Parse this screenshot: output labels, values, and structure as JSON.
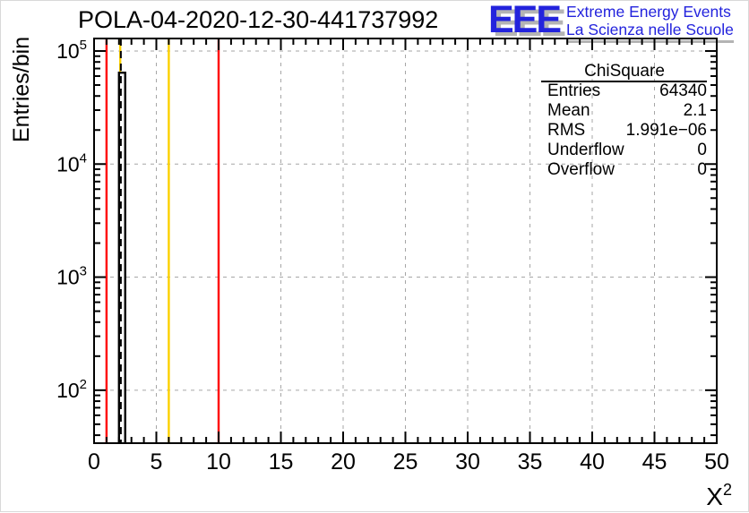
{
  "header": {
    "title": "POLA-04-2020-12-30-441737992",
    "logo": {
      "acronym": "EEE",
      "line1": "Extreme Energy Events",
      "line2": "La Scienza nelle Scuole"
    }
  },
  "stats_box": {
    "title": "ChiSquare",
    "rows": [
      {
        "label": "Entries",
        "value": "64340"
      },
      {
        "label": "Mean",
        "value": "2.1"
      },
      {
        "label": "RMS",
        "value": "1.991e−06"
      },
      {
        "label": "Underflow",
        "value": "0"
      },
      {
        "label": "Overflow",
        "value": "0"
      }
    ]
  },
  "chart_data": {
    "type": "bar",
    "title": "POLA-04-2020-12-30-441737992",
    "xlabel_base": "X",
    "xlabel_sup": "2",
    "ylabel": "Entries/bin",
    "xlim": [
      0,
      50
    ],
    "x_major_step": 5,
    "x_minor_step": 1,
    "x_tick_labels": [
      0,
      5,
      10,
      15,
      20,
      25,
      30,
      35,
      40,
      45,
      50
    ],
    "y_scale": "log",
    "ylim": [
      34,
      129000
    ],
    "y_major_ticks": [
      100,
      1000,
      10000,
      100000
    ],
    "grid": true,
    "legend": null,
    "bins": [
      {
        "x_low": 2.0,
        "x_high": 2.5,
        "count": 64340
      }
    ],
    "marker_lines": [
      {
        "name": "lower-limit-line",
        "x": 1,
        "color": "#ff0000",
        "style": "solid",
        "extent": "full"
      },
      {
        "name": "mean-marker-yellow",
        "x": 2.1,
        "color": "#fcd000",
        "style": "solid",
        "extent": "above-histogram"
      },
      {
        "name": "mean-line-dashed",
        "x": 2.15,
        "color": "#000000",
        "style": "dashed",
        "extent": "full"
      },
      {
        "name": "warning-line",
        "x": 6,
        "color": "#fcd000",
        "style": "solid",
        "extent": "full"
      },
      {
        "name": "upper-limit-line",
        "x": 10,
        "color": "#ff0000",
        "style": "solid",
        "extent": "full"
      }
    ],
    "colors": {
      "histogram": "#000000",
      "grid": "#a6a6a6",
      "axis": "#000000",
      "logo_blue": "#2323dd",
      "logo_shadow": "#b4b4b4"
    }
  }
}
